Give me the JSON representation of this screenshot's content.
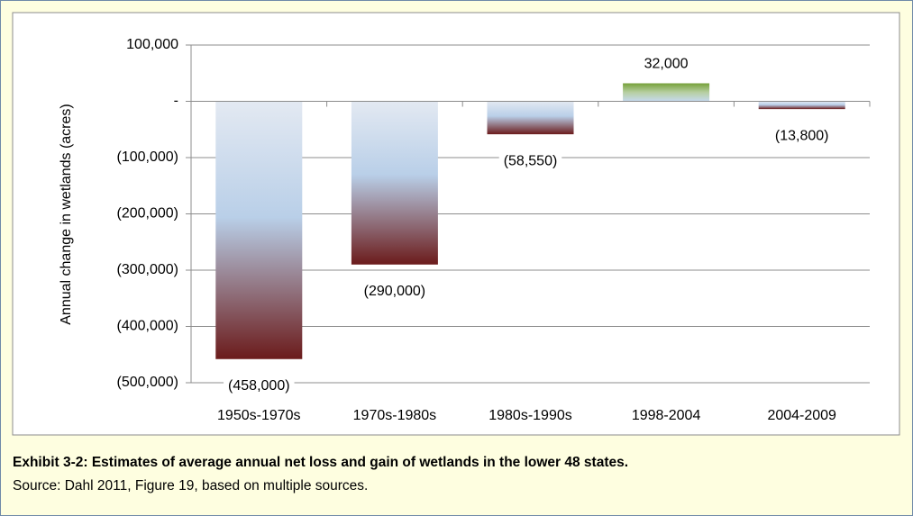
{
  "chart_data": {
    "type": "bar",
    "ylabel": "Annual change in wetlands (acres)",
    "categories": [
      "1950s-1970s",
      "1970s-1980s",
      "1980s-1990s",
      "1998-2004",
      "2004-2009"
    ],
    "values": [
      -458000,
      -290000,
      -58550,
      32000,
      -13800
    ],
    "value_labels": [
      "(458,000)",
      "(290,000)",
      "(58,550)",
      "32,000",
      "(13,800)"
    ],
    "ylim": [
      -500000,
      100000
    ],
    "yticks": [
      {
        "value": 100000,
        "label": "100,000"
      },
      {
        "value": 0,
        "label": "-"
      },
      {
        "value": -100000,
        "label": "(100,000)"
      },
      {
        "value": -200000,
        "label": "(200,000)"
      },
      {
        "value": -300000,
        "label": "(300,000)"
      },
      {
        "value": -400000,
        "label": "(400,000)"
      },
      {
        "value": -500000,
        "label": "(500,000)"
      }
    ],
    "grid": true,
    "caption": "Exhibit 3-2: Estimates of average annual net loss and gain of wetlands in the lower 48 states.",
    "note": "Source: Dahl 2011, Figure 19, based on multiple sources."
  }
}
